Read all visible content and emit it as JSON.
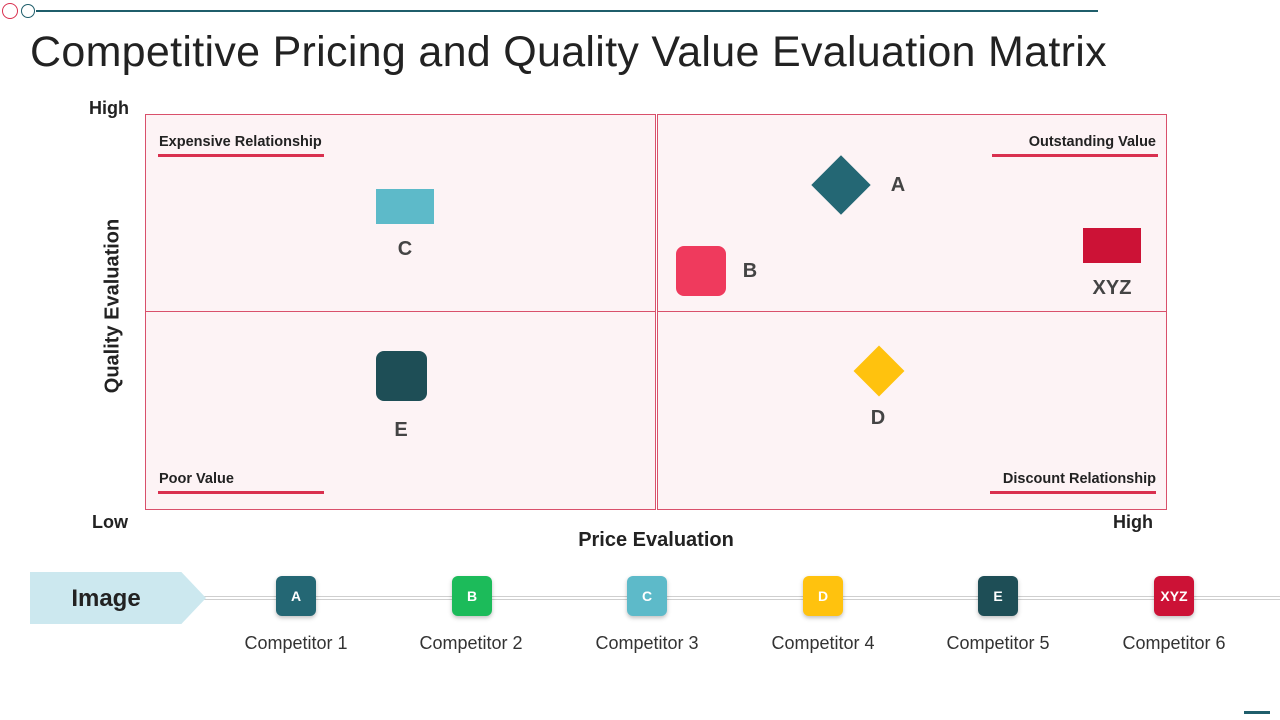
{
  "title": "Competitive Pricing and Quality Value Evaluation Matrix",
  "colors": {
    "accent": "#d9304f",
    "teal_dark": "#1f5e6b",
    "quadrant_fill": "#fdf3f5",
    "competitor_a": "#246774",
    "competitor_b": "#ef3a5d",
    "competitor_b_badge": "#1cbb5a",
    "competitor_c": "#5dbac9",
    "competitor_d": "#ffc20e",
    "competitor_e": "#1e4e56",
    "competitor_xyz": "#cc1236"
  },
  "matrix": {
    "y_axis": {
      "label": "Quality Evaluation",
      "high": "High",
      "low": "Low"
    },
    "x_axis": {
      "label": "Price Evaluation",
      "high": "High"
    },
    "quadrants": {
      "top_left": "Expensive Relationship",
      "top_right": "Outstanding Value",
      "bottom_left": "Poor Value",
      "bottom_right": "Discount Relationship"
    },
    "markers": {
      "a": {
        "label": "A",
        "shape": "diamond"
      },
      "b": {
        "label": "B",
        "shape": "rounded-square"
      },
      "c": {
        "label": "C",
        "shape": "rectangle"
      },
      "d": {
        "label": "D",
        "shape": "diamond"
      },
      "e": {
        "label": "E",
        "shape": "rounded-square"
      },
      "xyz": {
        "label": "XYZ",
        "shape": "rectangle"
      }
    }
  },
  "legend": {
    "title": "Image",
    "items": [
      {
        "badge": "A",
        "name": "Competitor 1",
        "color": "#246774"
      },
      {
        "badge": "B",
        "name": "Competitor 2",
        "color": "#1cbb5a"
      },
      {
        "badge": "C",
        "name": "Competitor 3",
        "color": "#5dbac9"
      },
      {
        "badge": "D",
        "name": "Competitor 4",
        "color": "#ffc20e"
      },
      {
        "badge": "E",
        "name": "Competitor 5",
        "color": "#1e4e56"
      },
      {
        "badge": "XYZ",
        "name": "Competitor 6",
        "color": "#cc1236"
      }
    ]
  }
}
